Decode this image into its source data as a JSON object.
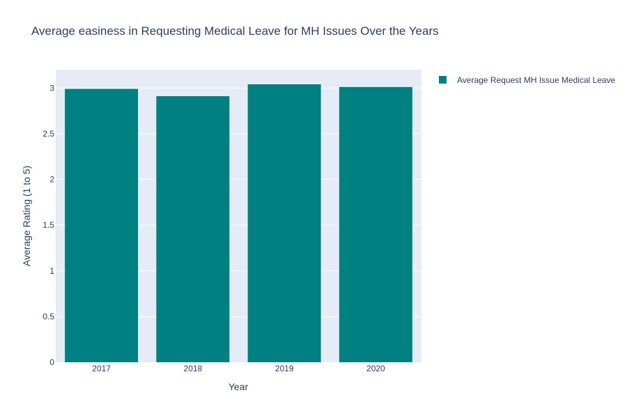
{
  "chart_data": {
    "type": "bar",
    "title": "Average easiness in Requesting Medical Leave for MH Issues Over the Years",
    "xlabel": "Year",
    "ylabel": "Average Rating (1 to 5)",
    "categories": [
      "2017",
      "2018",
      "2019",
      "2020"
    ],
    "series": [
      {
        "name": "Average Request MH Issue Medical Leave",
        "values": [
          2.99,
          2.91,
          3.04,
          3.01
        ],
        "color": "#008080"
      }
    ],
    "ylim": [
      0,
      3.2
    ],
    "yticks": [
      0,
      0.5,
      1,
      1.5,
      2,
      2.5,
      3
    ],
    "ytick_labels": [
      "0",
      "0.5",
      "1",
      "1.5",
      "2",
      "2.5",
      "3"
    ],
    "grid": true,
    "legend_position": "top-right",
    "plot_background": "#e5ecf6"
  }
}
